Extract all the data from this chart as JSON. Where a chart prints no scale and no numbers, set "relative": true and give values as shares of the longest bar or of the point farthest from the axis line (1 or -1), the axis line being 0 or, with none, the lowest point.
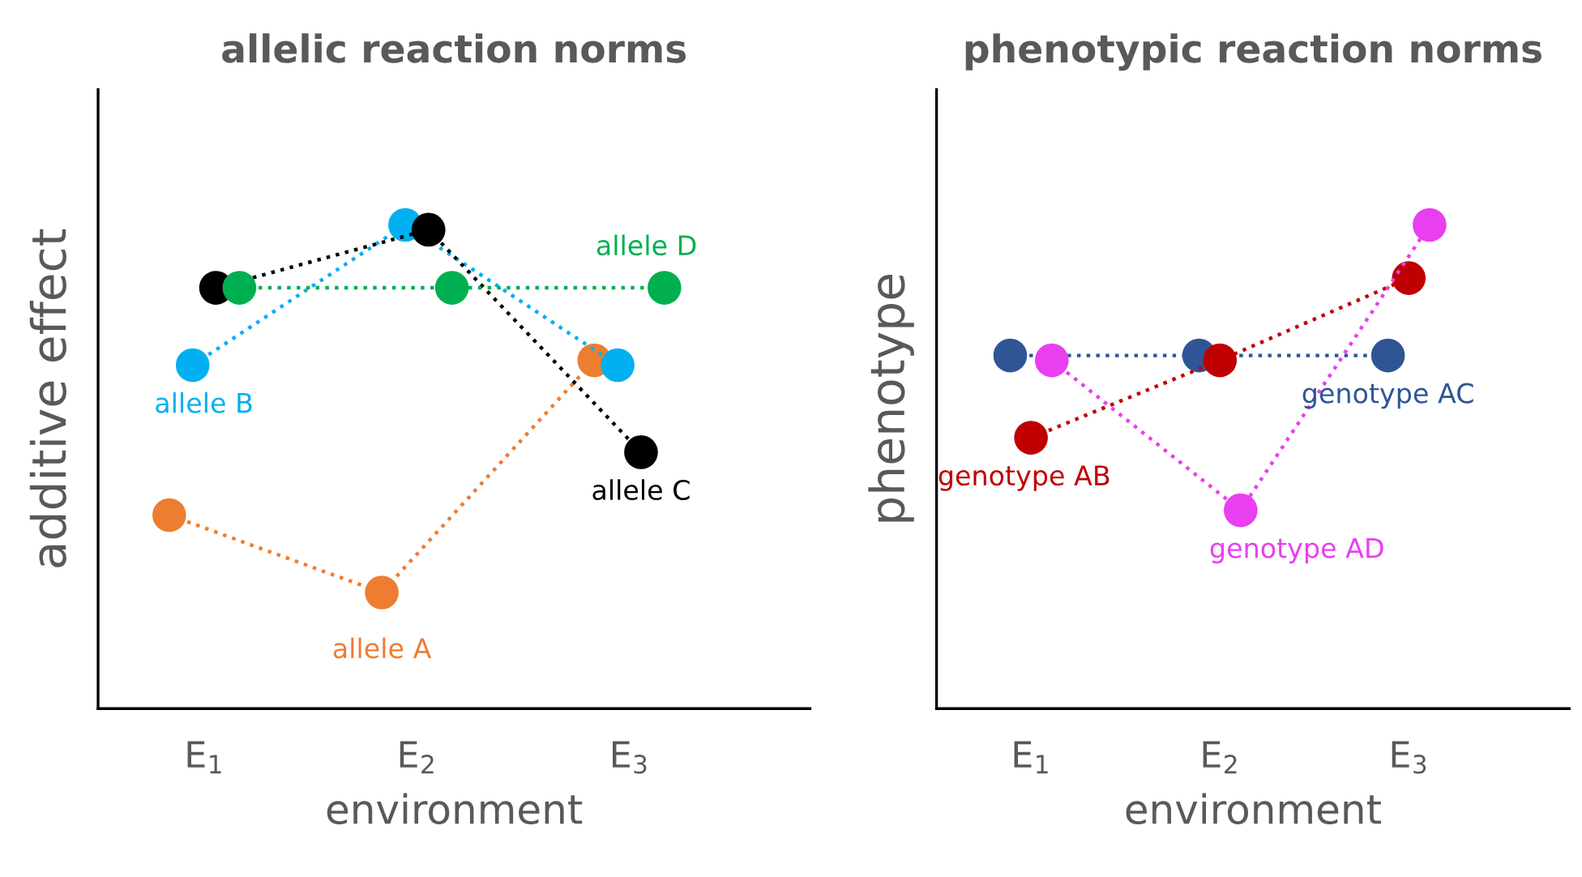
{
  "chart_data": [
    {
      "type": "line",
      "title": "allelic reaction norms",
      "xlabel": "environment",
      "ylabel": "additive effect",
      "categories": [
        "E$_{1}$",
        "E$_{2}$",
        "E$_{3}$"
      ],
      "relative": true,
      "marker": "circle",
      "line_style": "dotted",
      "legend": false,
      "grid": false,
      "series": [
        {
          "name": "allele A",
          "color": "#ed7d31",
          "values": [
            0.4,
            0.24,
            0.72
          ]
        },
        {
          "name": "allele B",
          "color": "#00b0f0",
          "values": [
            0.71,
            1.0,
            0.71
          ]
        },
        {
          "name": "allele C",
          "color": "#000000",
          "values": [
            0.87,
            0.99,
            0.53
          ]
        },
        {
          "name": "allele D",
          "color": "#00b050",
          "values": [
            0.87,
            0.87,
            0.87
          ]
        }
      ]
    },
    {
      "type": "line",
      "title": "phenotypic reaction norms",
      "xlabel": "environment",
      "ylabel": "phenotype",
      "categories": [
        "E$_{1}$",
        "E$_{2}$",
        "E$_{3}$"
      ],
      "relative": true,
      "marker": "circle",
      "line_style": "dotted",
      "legend": false,
      "grid": false,
      "series": [
        {
          "name": "genotype AC",
          "color": "#2f5597",
          "values": [
            0.73,
            0.73,
            0.73
          ]
        },
        {
          "name": "genotype AB",
          "color": "#c00000",
          "values": [
            0.56,
            0.72,
            0.89
          ]
        },
        {
          "name": "genotype AD",
          "color": "#e83ff0",
          "values": [
            0.72,
            0.41,
            1.0
          ]
        }
      ]
    }
  ]
}
